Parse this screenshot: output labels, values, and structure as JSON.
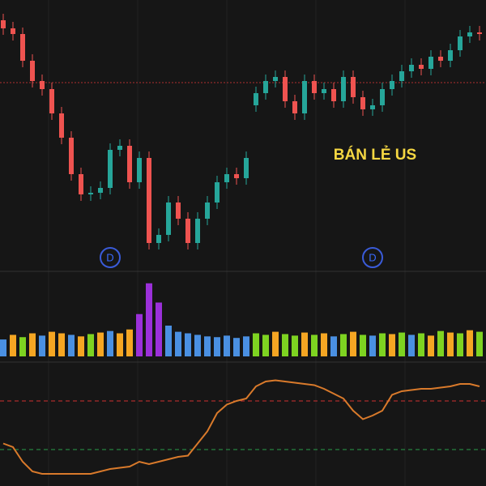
{
  "chart_data": {
    "type": "candlestick",
    "annotation": "BÁN LẺ US",
    "markers": [
      {
        "label": "D",
        "index": 11
      },
      {
        "label": "D",
        "index": 38
      }
    ],
    "ylim": [
      0,
      335
    ],
    "reference_line": 233,
    "up_color": "#26a69a",
    "down_color": "#ef5350",
    "open": [
      310,
      300,
      293,
      260,
      235,
      225,
      195,
      165,
      120,
      95,
      97,
      103,
      150,
      155,
      110,
      140,
      35,
      45,
      85,
      65,
      35,
      65,
      85,
      110,
      120,
      115,
      205,
      220,
      235,
      240,
      210,
      195,
      235,
      220,
      225,
      210,
      240,
      215,
      200,
      205,
      225,
      235,
      247,
      255,
      250,
      265,
      260,
      273,
      290,
      295
    ],
    "high": [
      318,
      308,
      301,
      268,
      243,
      233,
      203,
      173,
      128,
      105,
      111,
      158,
      163,
      163,
      148,
      148,
      53,
      93,
      93,
      73,
      73,
      93,
      118,
      128,
      128,
      148,
      228,
      243,
      248,
      248,
      218,
      243,
      243,
      233,
      233,
      248,
      248,
      223,
      213,
      233,
      243,
      255,
      263,
      263,
      273,
      273,
      281,
      298,
      303,
      303
    ],
    "low": [
      292,
      285,
      252,
      227,
      217,
      187,
      157,
      112,
      87,
      87,
      89,
      95,
      142,
      102,
      102,
      27,
      27,
      37,
      57,
      27,
      27,
      57,
      77,
      102,
      107,
      107,
      197,
      212,
      227,
      202,
      187,
      187,
      212,
      212,
      202,
      202,
      207,
      192,
      192,
      197,
      217,
      227,
      239,
      242,
      242,
      252,
      252,
      265,
      282,
      285
    ],
    "close": [
      300,
      293,
      260,
      235,
      225,
      195,
      165,
      120,
      95,
      97,
      103,
      150,
      155,
      110,
      140,
      35,
      45,
      85,
      65,
      35,
      65,
      85,
      110,
      120,
      115,
      140,
      220,
      235,
      240,
      210,
      195,
      235,
      220,
      225,
      210,
      240,
      215,
      200,
      205,
      225,
      235,
      247,
      255,
      250,
      265,
      260,
      273,
      290,
      295,
      293
    ],
    "volume": {
      "ylim": [
        0,
        100
      ],
      "values": [
        22,
        28,
        25,
        30,
        27,
        32,
        30,
        28,
        26,
        29,
        31,
        33,
        30,
        35,
        55,
        95,
        70,
        40,
        32,
        30,
        28,
        26,
        25,
        27,
        24,
        26,
        30,
        28,
        32,
        29,
        27,
        31,
        28,
        30,
        26,
        29,
        32,
        28,
        27,
        30,
        29,
        31,
        28,
        30,
        27,
        33,
        31,
        30,
        34,
        32
      ],
      "colors": [
        "#4a90e2",
        "#f5a623",
        "#7ed321",
        "#f5a623",
        "#4a90e2",
        "#f5a623",
        "#f5a623",
        "#4a90e2",
        "#f5a623",
        "#7ed321",
        "#f5a623",
        "#4a90e2",
        "#f5a623",
        "#f5a623",
        "#9b30d9",
        "#9b30d9",
        "#9b30d9",
        "#4a90e2",
        "#4a90e2",
        "#4a90e2",
        "#4a90e2",
        "#4a90e2",
        "#4a90e2",
        "#4a90e2",
        "#4a90e2",
        "#4a90e2",
        "#7ed321",
        "#7ed321",
        "#f5a623",
        "#7ed321",
        "#7ed321",
        "#f5a623",
        "#7ed321",
        "#f5a623",
        "#4a90e2",
        "#7ed321",
        "#f5a623",
        "#7ed321",
        "#4a90e2",
        "#7ed321",
        "#f5a623",
        "#7ed321",
        "#4a90e2",
        "#7ed321",
        "#f5a623",
        "#7ed321",
        "#f5a623",
        "#7ed321",
        "#f5a623",
        "#7ed321"
      ]
    },
    "oscillator": {
      "ylim": [
        0,
        100
      ],
      "levels": [
        70,
        30
      ],
      "level_colors": [
        "#d03030",
        "#2a9d4a"
      ],
      "color": "#d97a2b",
      "values": [
        35,
        32,
        20,
        12,
        10,
        10,
        10,
        10,
        10,
        10,
        12,
        14,
        15,
        16,
        20,
        18,
        20,
        22,
        24,
        25,
        35,
        45,
        60,
        67,
        70,
        72,
        82,
        86,
        87,
        86,
        85,
        84,
        83,
        80,
        76,
        72,
        62,
        55,
        58,
        62,
        75,
        78,
        79,
        80,
        80,
        81,
        82,
        84,
        84,
        82
      ]
    }
  }
}
